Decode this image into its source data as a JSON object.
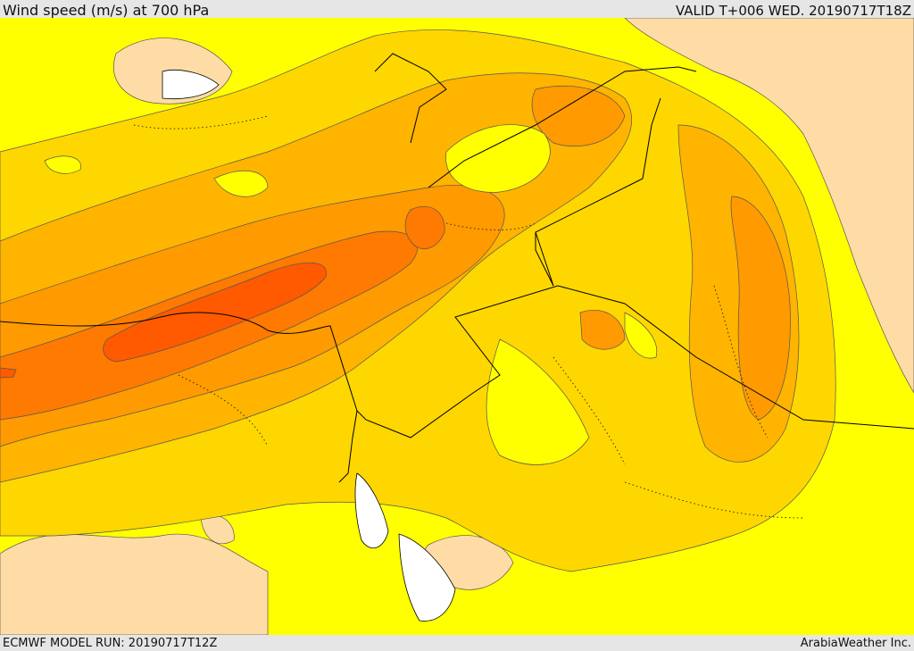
{
  "header": {
    "title": "Wind speed (m/s) at 700 hPa",
    "valid": "VALID T+006 WED. 20190717T18Z"
  },
  "footer": {
    "model_run": "ECMWF MODEL RUN: 20190717T12Z",
    "credit": "ArabiaWeather Inc."
  },
  "map": {
    "colors": {
      "land_low": "#ffdca6",
      "yellow": "#ffff00",
      "gold": "#ffd700",
      "amber": "#ffb400",
      "orange": "#ff9a00",
      "deep_orange": "#ff7a00",
      "red_orange": "#ff5a00",
      "water": "#ffffff",
      "borders": "#000000"
    }
  }
}
